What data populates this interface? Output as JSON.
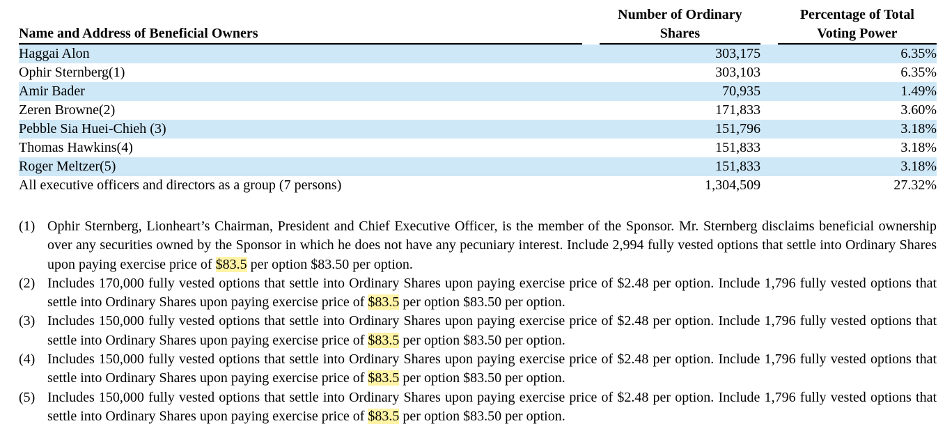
{
  "table": {
    "headers": {
      "name": "Name and Address of Beneficial Owners",
      "shares_line1": "Number of Ordinary",
      "shares_line2": "Shares",
      "pct_line1": "Percentage of Total",
      "pct_line2": "Voting Power"
    },
    "rows": [
      {
        "name": "Haggai Alon",
        "shares": "303,175",
        "pct": "6.35%"
      },
      {
        "name": "Ophir Sternberg(1)",
        "shares": "303,103",
        "pct": "6.35%"
      },
      {
        "name": "Amir Bader",
        "shares": "70,935",
        "pct": "1.49%"
      },
      {
        "name": "Zeren Browne(2)",
        "shares": "171,833",
        "pct": "3.60%"
      },
      {
        "name": "Pebble Sia Huei-Chieh (3)",
        "shares": "151,796",
        "pct": "3.18%"
      },
      {
        "name": "Thomas Hawkins(4)",
        "shares": "151,833",
        "pct": "3.18%"
      },
      {
        "name": "Roger Meltzer(5)",
        "shares": "151,833",
        "pct": "3.18%"
      },
      {
        "name": "All executive officers and directors as a group (7 persons)",
        "shares": "1,304,509",
        "pct": "27.32%"
      }
    ],
    "shaded_color": "#cfe8f7"
  },
  "footnotes": [
    {
      "marker": "(1)",
      "before": "Ophir Sternberg, Lionheart’s Chairman, President and Chief Executive Officer, is the member of the Sponsor. Mr. Sternberg disclaims beneficial ownership over any securities owned by the Sponsor in which he does not have any pecuniary interest. Include 2,994 fully vested options that settle into Ordinary Shares upon paying exercise price of ",
      "highlight": "$83.5",
      "after": " per option $83.50 per option."
    },
    {
      "marker": "(2)",
      "before": "Includes 170,000 fully vested options that settle into Ordinary Shares upon paying exercise price of $2.48 per option. Include 1,796 fully vested options that settle into Ordinary Shares upon paying exercise price of ",
      "highlight": "$83.5",
      "after": " per option $83.50 per option."
    },
    {
      "marker": "(3)",
      "before": "Includes 150,000 fully vested options that settle into Ordinary Shares upon paying exercise price of $2.48 per option. Include 1,796 fully vested options that settle into Ordinary Shares upon paying exercise price of ",
      "highlight": "$83.5",
      "after": " per option $83.50 per option."
    },
    {
      "marker": "(4)",
      "before": "Includes 150,000 fully vested options that settle into Ordinary Shares upon paying exercise price of $2.48 per option. Include 1,796 fully vested options that settle into Ordinary Shares upon paying exercise price of ",
      "highlight": "$83.5",
      "after": " per option $83.50 per option."
    },
    {
      "marker": "(5)",
      "before": "Includes 150,000 fully vested options that settle into Ordinary Shares upon paying exercise price of $2.48 per option. Include 1,796 fully vested options that settle into Ordinary Shares upon paying exercise price of ",
      "highlight": "$83.5",
      "after": " per option $83.50 per option."
    }
  ],
  "highlight_color": "#fff3a6"
}
